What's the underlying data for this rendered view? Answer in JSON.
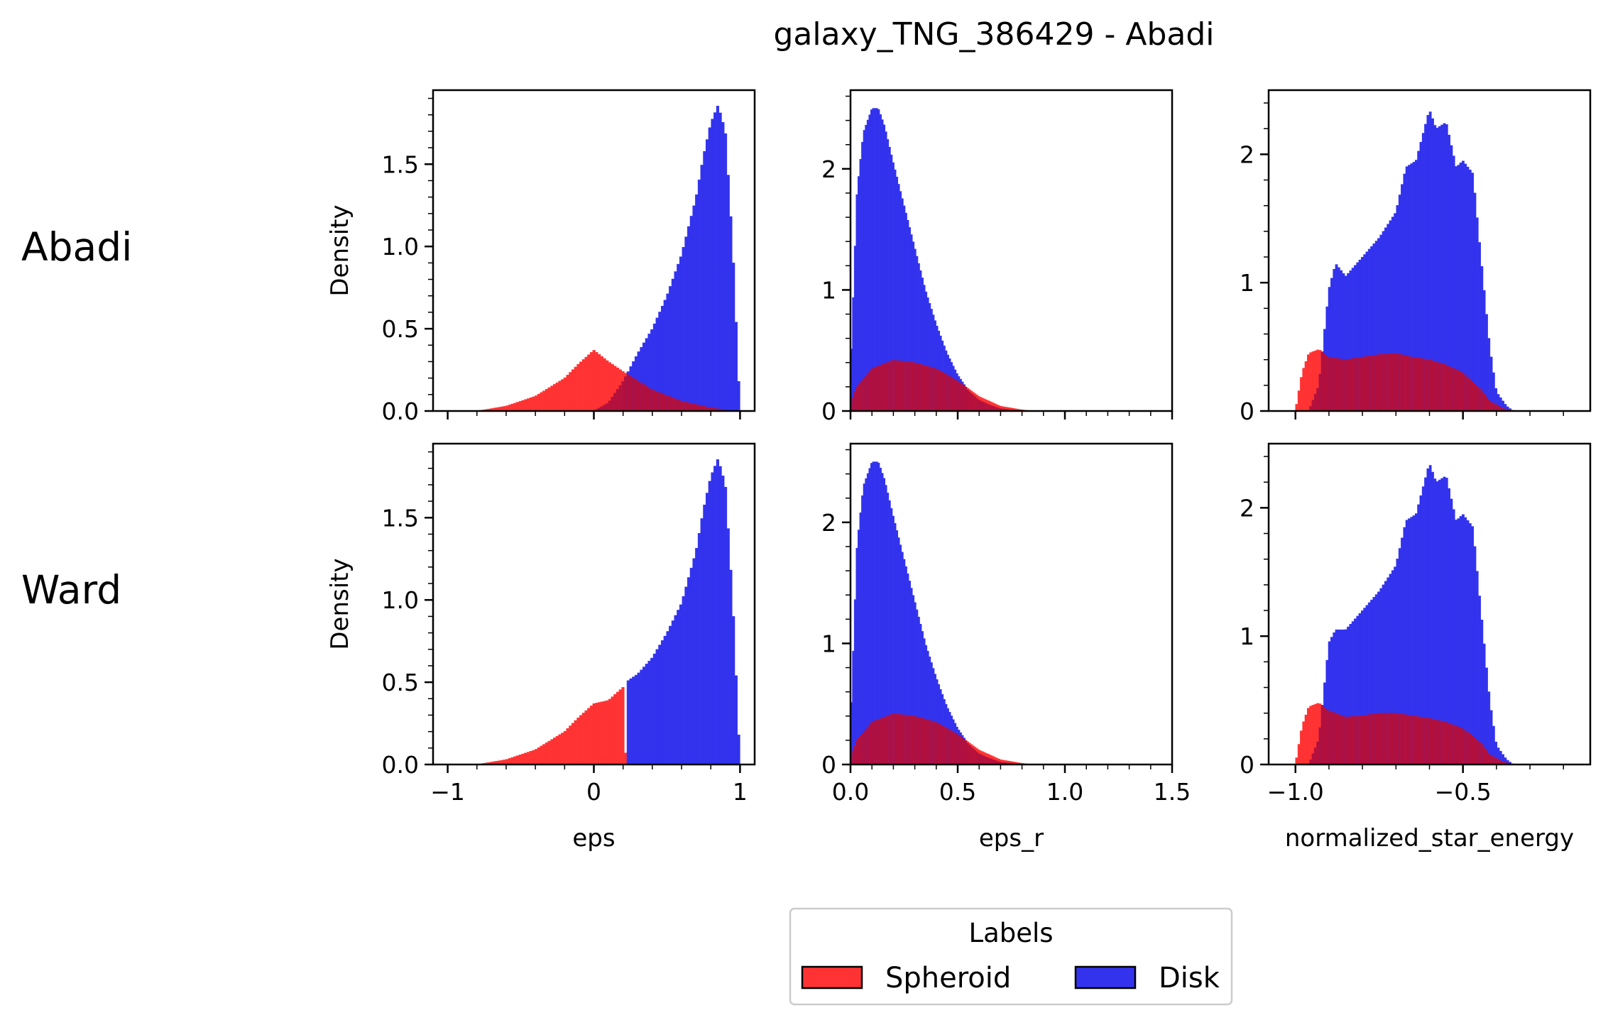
{
  "title": "galaxy_TNG_386429 - Abadi",
  "row_labels": [
    "Abadi",
    "Ward"
  ],
  "legend": {
    "title": "Labels",
    "entries": [
      {
        "label": "Spheroid",
        "color": "#ff3333"
      },
      {
        "label": "Disk",
        "color": "#3333ee"
      }
    ]
  },
  "colors": {
    "spheroid": "#ff3333",
    "disk": "#3333ee",
    "overlap": "#b2103e"
  },
  "chart_data": [
    {
      "type": "bar",
      "row": "Abadi",
      "xlabel": "",
      "ylabel": "Density",
      "xlim": [
        -1.1,
        1.1
      ],
      "ylim": [
        0,
        1.95
      ],
      "xticks": [
        -1,
        0,
        1
      ],
      "xtick_labels": [
        "",
        "",
        ""
      ],
      "yticks": [
        0,
        0.5,
        1.0,
        1.5
      ],
      "ytick_labels": [
        "0.0",
        "0.5",
        "1.0",
        "1.5"
      ],
      "series": [
        {
          "name": "Spheroid",
          "x": [
            -0.8,
            -0.6,
            -0.4,
            -0.2,
            -0.1,
            0.0,
            0.1,
            0.2,
            0.4,
            0.6,
            0.8,
            0.95
          ],
          "values": [
            0.0,
            0.03,
            0.09,
            0.2,
            0.29,
            0.37,
            0.3,
            0.24,
            0.13,
            0.06,
            0.02,
            0.0
          ]
        },
        {
          "name": "Disk",
          "x": [
            0.0,
            0.1,
            0.2,
            0.3,
            0.4,
            0.5,
            0.6,
            0.7,
            0.75,
            0.8,
            0.85,
            0.9,
            0.95,
            1.0
          ],
          "values": [
            0.0,
            0.05,
            0.18,
            0.35,
            0.5,
            0.7,
            0.95,
            1.3,
            1.55,
            1.75,
            1.86,
            1.7,
            1.0,
            0.0
          ]
        }
      ]
    },
    {
      "type": "bar",
      "row": "Abadi",
      "xlabel": "",
      "ylabel": "",
      "xlim": [
        0,
        1.5
      ],
      "ylim": [
        0,
        2.65
      ],
      "xticks": [
        0,
        0.5,
        1.0,
        1.5
      ],
      "xtick_labels": [
        "",
        "",
        "",
        ""
      ],
      "yticks": [
        0,
        1,
        2
      ],
      "ytick_labels": [
        "0",
        "1",
        "2"
      ],
      "series": [
        {
          "name": "Spheroid",
          "x": [
            0.0,
            0.03,
            0.1,
            0.2,
            0.3,
            0.4,
            0.5,
            0.6,
            0.7,
            0.8,
            0.85
          ],
          "values": [
            0.05,
            0.2,
            0.35,
            0.42,
            0.4,
            0.35,
            0.25,
            0.12,
            0.04,
            0.01,
            0.0
          ]
        },
        {
          "name": "Disk",
          "x": [
            0.0,
            0.03,
            0.06,
            0.1,
            0.13,
            0.16,
            0.2,
            0.25,
            0.3,
            0.35,
            0.4,
            0.45,
            0.5,
            0.55,
            0.6,
            0.65,
            0.7,
            0.8
          ],
          "values": [
            0.3,
            1.8,
            2.3,
            2.5,
            2.5,
            2.35,
            2.05,
            1.7,
            1.35,
            1.0,
            0.72,
            0.48,
            0.3,
            0.17,
            0.09,
            0.05,
            0.02,
            0.0
          ]
        }
      ]
    },
    {
      "type": "bar",
      "row": "Abadi",
      "xlabel": "",
      "ylabel": "",
      "xlim": [
        -1.08,
        -0.12
      ],
      "ylim": [
        0,
        2.5
      ],
      "xticks": [
        -1.0,
        -0.5
      ],
      "xtick_labels": [
        "",
        ""
      ],
      "yticks": [
        0,
        1,
        2
      ],
      "ytick_labels": [
        "0",
        "1",
        "2"
      ],
      "series": [
        {
          "name": "Spheroid",
          "x": [
            -1.0,
            -0.98,
            -0.96,
            -0.93,
            -0.9,
            -0.85,
            -0.8,
            -0.75,
            -0.7,
            -0.65,
            -0.6,
            -0.55,
            -0.5,
            -0.45,
            -0.42,
            -0.38,
            -0.34
          ],
          "values": [
            0.0,
            0.3,
            0.45,
            0.48,
            0.42,
            0.4,
            0.42,
            0.44,
            0.45,
            0.42,
            0.4,
            0.36,
            0.3,
            0.18,
            0.08,
            0.02,
            0.0
          ]
        },
        {
          "name": "Disk",
          "x": [
            -0.96,
            -0.93,
            -0.9,
            -0.88,
            -0.85,
            -0.8,
            -0.75,
            -0.7,
            -0.67,
            -0.64,
            -0.62,
            -0.6,
            -0.58,
            -0.55,
            -0.52,
            -0.5,
            -0.47,
            -0.45,
            -0.42,
            -0.4,
            -0.37,
            -0.35,
            -0.3
          ],
          "values": [
            0.0,
            0.2,
            0.95,
            1.15,
            1.05,
            1.2,
            1.35,
            1.55,
            1.9,
            1.95,
            2.15,
            2.35,
            2.2,
            2.25,
            1.9,
            1.95,
            1.85,
            1.3,
            0.5,
            0.15,
            0.04,
            0.0,
            0.0
          ]
        }
      ]
    },
    {
      "type": "bar",
      "row": "Ward",
      "xlabel": "eps",
      "ylabel": "Density",
      "xlim": [
        -1.1,
        1.1
      ],
      "ylim": [
        0,
        1.95
      ],
      "xticks": [
        -1,
        0,
        1
      ],
      "xtick_labels": [
        "−1",
        "0",
        "1"
      ],
      "yticks": [
        0,
        0.5,
        1.0,
        1.5
      ],
      "ytick_labels": [
        "0.0",
        "0.5",
        "1.0",
        "1.5"
      ],
      "series": [
        {
          "name": "Spheroid",
          "x": [
            -0.8,
            -0.6,
            -0.4,
            -0.2,
            -0.1,
            0.0,
            0.1,
            0.2,
            0.22
          ],
          "values": [
            0.0,
            0.03,
            0.09,
            0.2,
            0.29,
            0.37,
            0.39,
            0.47,
            0.0
          ]
        },
        {
          "name": "Disk",
          "x": [
            0.22,
            0.25,
            0.3,
            0.4,
            0.5,
            0.6,
            0.7,
            0.75,
            0.8,
            0.85,
            0.9,
            0.95,
            1.0
          ],
          "values": [
            0.5,
            0.52,
            0.55,
            0.65,
            0.8,
            0.98,
            1.3,
            1.55,
            1.75,
            1.86,
            1.7,
            1.0,
            0.0
          ]
        }
      ]
    },
    {
      "type": "bar",
      "row": "Ward",
      "xlabel": "eps_r",
      "ylabel": "",
      "xlim": [
        0,
        1.5
      ],
      "ylim": [
        0,
        2.65
      ],
      "xticks": [
        0,
        0.5,
        1.0,
        1.5
      ],
      "xtick_labels": [
        "0.0",
        "0.5",
        "1.0",
        "1.5"
      ],
      "yticks": [
        0,
        1,
        2
      ],
      "ytick_labels": [
        "0",
        "1",
        "2"
      ],
      "series": [
        {
          "name": "Spheroid",
          "x": [
            0.0,
            0.03,
            0.1,
            0.2,
            0.3,
            0.4,
            0.5,
            0.6,
            0.7,
            0.8,
            0.85
          ],
          "values": [
            0.05,
            0.2,
            0.35,
            0.42,
            0.4,
            0.35,
            0.25,
            0.12,
            0.04,
            0.01,
            0.0
          ]
        },
        {
          "name": "Disk",
          "x": [
            0.0,
            0.03,
            0.06,
            0.1,
            0.13,
            0.16,
            0.2,
            0.25,
            0.3,
            0.35,
            0.4,
            0.45,
            0.5,
            0.55,
            0.6,
            0.65,
            0.7,
            0.8
          ],
          "values": [
            0.3,
            1.8,
            2.3,
            2.5,
            2.5,
            2.35,
            2.05,
            1.7,
            1.35,
            1.0,
            0.72,
            0.48,
            0.3,
            0.17,
            0.09,
            0.05,
            0.02,
            0.0
          ]
        }
      ]
    },
    {
      "type": "bar",
      "row": "Ward",
      "xlabel": "normalized_star_energy",
      "ylabel": "",
      "xlim": [
        -1.08,
        -0.12
      ],
      "ylim": [
        0,
        2.5
      ],
      "xticks": [
        -1.0,
        -0.5
      ],
      "xtick_labels": [
        "−1.0",
        "−0.5"
      ],
      "yticks": [
        0,
        1,
        2
      ],
      "ytick_labels": [
        "0",
        "1",
        "2"
      ],
      "series": [
        {
          "name": "Spheroid",
          "x": [
            -1.0,
            -0.98,
            -0.96,
            -0.93,
            -0.9,
            -0.85,
            -0.8,
            -0.75,
            -0.7,
            -0.65,
            -0.6,
            -0.55,
            -0.5,
            -0.45,
            -0.42,
            -0.38,
            -0.34
          ],
          "values": [
            0.0,
            0.3,
            0.45,
            0.48,
            0.42,
            0.37,
            0.38,
            0.4,
            0.4,
            0.38,
            0.36,
            0.33,
            0.28,
            0.18,
            0.08,
            0.02,
            0.0
          ]
        },
        {
          "name": "Disk",
          "x": [
            -0.96,
            -0.93,
            -0.9,
            -0.88,
            -0.85,
            -0.8,
            -0.75,
            -0.7,
            -0.67,
            -0.64,
            -0.62,
            -0.6,
            -0.58,
            -0.55,
            -0.52,
            -0.5,
            -0.47,
            -0.45,
            -0.42,
            -0.4,
            -0.37,
            -0.35,
            -0.3
          ],
          "values": [
            0.0,
            0.2,
            0.95,
            1.05,
            1.05,
            1.2,
            1.35,
            1.55,
            1.9,
            1.95,
            2.15,
            2.35,
            2.2,
            2.25,
            1.9,
            1.95,
            1.85,
            1.3,
            0.5,
            0.15,
            0.04,
            0.0,
            0.0
          ]
        }
      ]
    }
  ]
}
